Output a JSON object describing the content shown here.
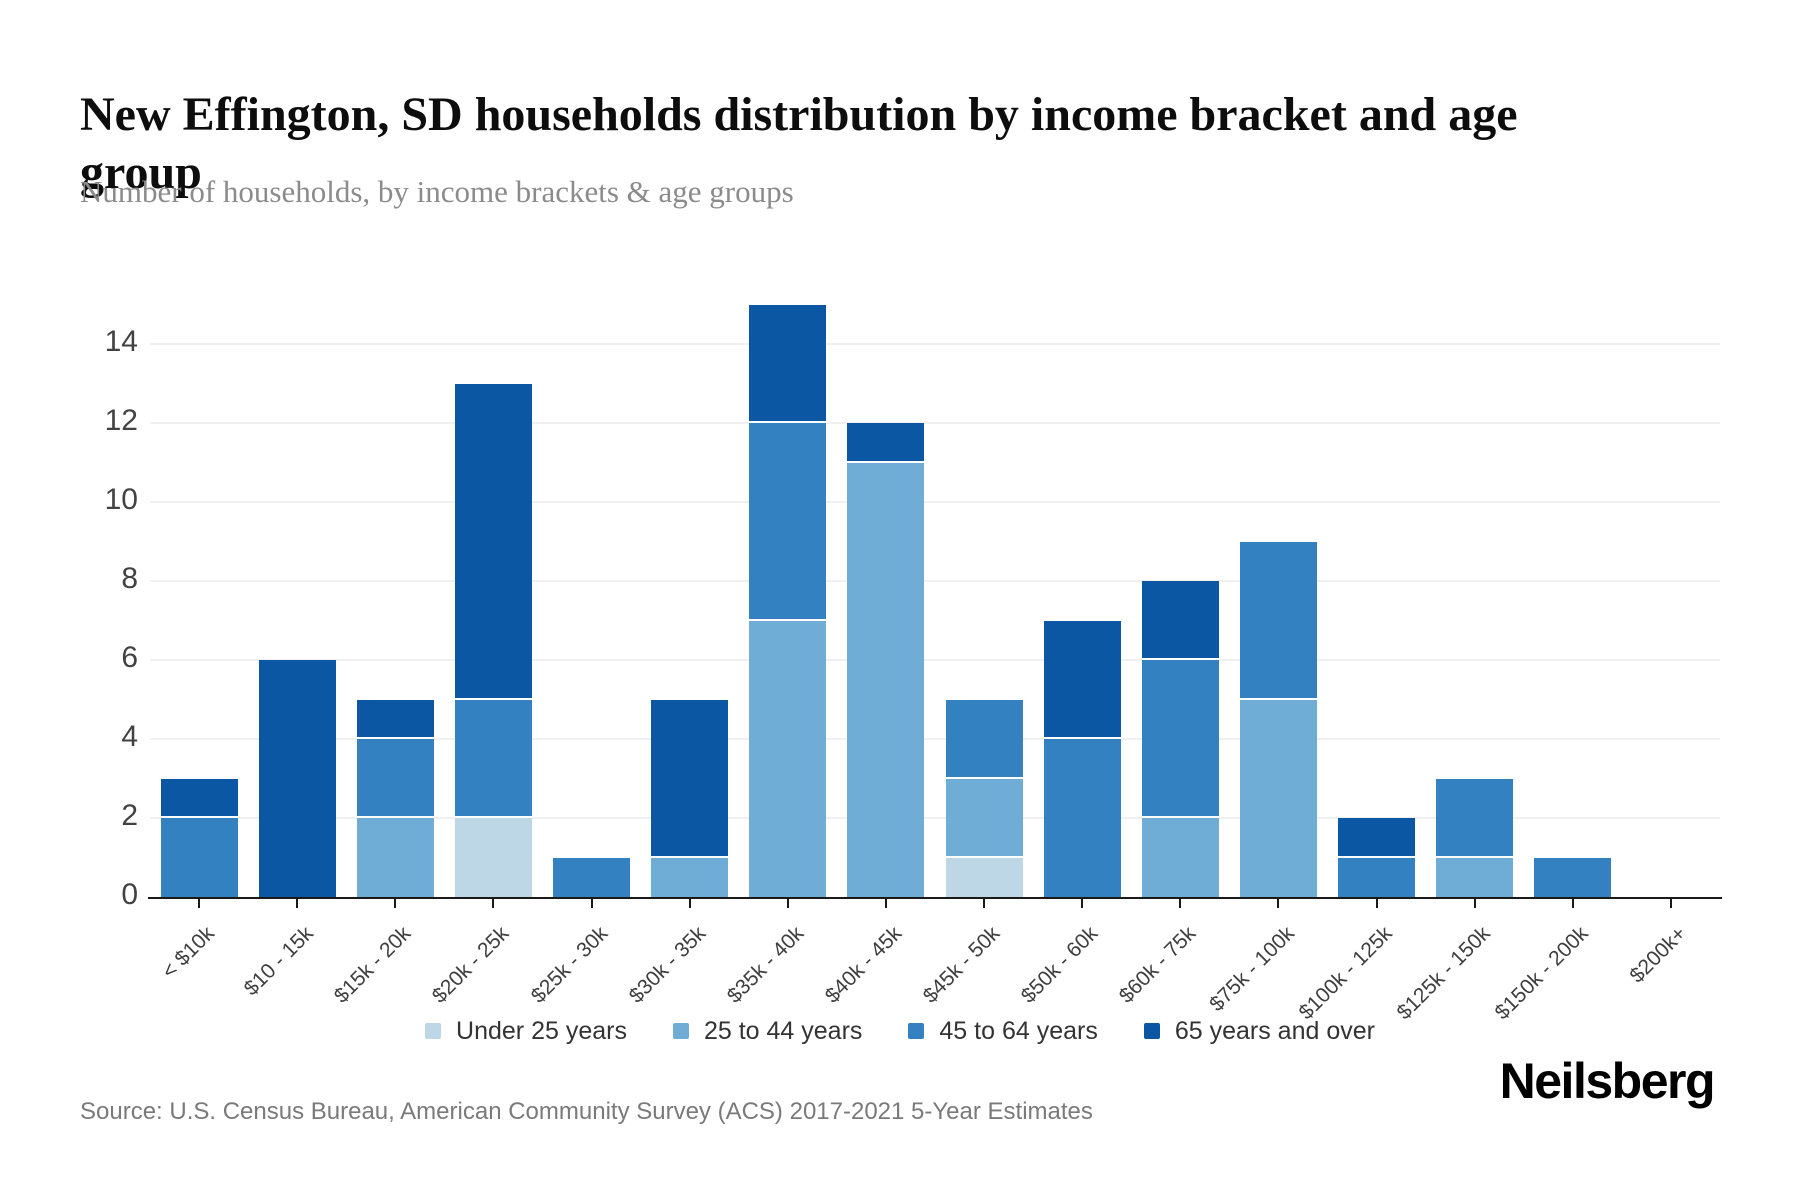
{
  "header": {
    "title": "New Effington, SD households distribution by income bracket and age group",
    "subtitle": "Number of households, by income brackets & age groups"
  },
  "chart_data": {
    "type": "bar",
    "stacked": true,
    "title": "New Effington, SD households distribution by income bracket and age group",
    "subtitle": "Number of households, by income brackets & age groups",
    "xlabel": "",
    "ylabel": "",
    "ylim": [
      0,
      15
    ],
    "yticks": [
      0,
      2,
      4,
      6,
      8,
      10,
      12,
      14
    ],
    "grid": "horizontal",
    "legend_position": "bottom",
    "categories": [
      "< $10k",
      "$10 - 15k",
      "$15k - 20k",
      "$20k - 25k",
      "$25k - 30k",
      "$30k - 35k",
      "$35k - 40k",
      "$40k - 45k",
      "$45k - 50k",
      "$50k - 60k",
      "$60k - 75k",
      "$75k - 100k",
      "$100k - 125k",
      "$125k - 150k",
      "$150k - 200k",
      "$200k+"
    ],
    "series": [
      {
        "name": "Under 25 years",
        "color": "#bdd7e7",
        "values": [
          0,
          0,
          0,
          2,
          0,
          0,
          0,
          0,
          1,
          0,
          0,
          0,
          0,
          0,
          0,
          0
        ]
      },
      {
        "name": "25 to 44 years",
        "color": "#6fadd7",
        "values": [
          0,
          0,
          2,
          0,
          0,
          1,
          7,
          11,
          2,
          0,
          2,
          5,
          0,
          1,
          0,
          0
        ]
      },
      {
        "name": "45 to 64 years",
        "color": "#3381c0",
        "values": [
          2,
          0,
          2,
          3,
          1,
          0,
          5,
          0,
          2,
          4,
          4,
          4,
          1,
          2,
          1,
          0
        ]
      },
      {
        "name": "65 years and over",
        "color": "#0b57a4",
        "values": [
          1,
          6,
          1,
          8,
          0,
          4,
          3,
          1,
          0,
          3,
          2,
          0,
          1,
          0,
          0,
          0
        ]
      }
    ],
    "totals": [
      3,
      6,
      5,
      13,
      1,
      5,
      15,
      12,
      5,
      7,
      8,
      9,
      2,
      3,
      1,
      0
    ]
  },
  "footer": {
    "source": "Source: U.S. Census Bureau, American Community Survey (ACS) 2017-2021 5-Year Estimates",
    "logo": "Neilsberg"
  },
  "style": {
    "axis_color": "#1a1a1a",
    "gridline_color": "#f0f0f0",
    "tick_label_color": "#3e3e3e"
  }
}
